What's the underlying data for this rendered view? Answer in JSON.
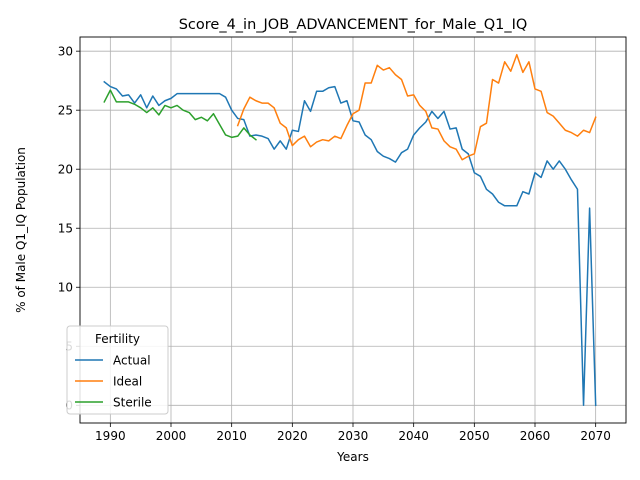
{
  "chart_data": {
    "type": "line",
    "title": "Score_4_in_JOB_ADVANCEMENT_for_Male_Q1_IQ",
    "xlabel": "Years",
    "ylabel": "% of Male Q1_IQ Population",
    "xlim": [
      1985,
      2075
    ],
    "ylim": [
      -1.5,
      31.2
    ],
    "xticks": [
      1990,
      2000,
      2010,
      2020,
      2030,
      2040,
      2050,
      2060,
      2070
    ],
    "yticks": [
      0,
      5,
      10,
      15,
      20,
      25,
      30
    ],
    "grid": true,
    "legend": {
      "title": "Fertility",
      "position": "lower-left"
    },
    "series": [
      {
        "name": "Actual",
        "color": "#1f77b4",
        "x": [
          1989,
          1990,
          1991,
          1992,
          1993,
          1994,
          1995,
          1996,
          1997,
          1998,
          1999,
          2000,
          2001,
          2002,
          2003,
          2004,
          2005,
          2006,
          2007,
          2008,
          2009,
          2010,
          2011,
          2012,
          2013,
          2014,
          2015,
          2016,
          2017,
          2018,
          2019,
          2020,
          2021,
          2022,
          2023,
          2024,
          2025,
          2026,
          2027,
          2028,
          2029,
          2030,
          2031,
          2032,
          2033,
          2034,
          2035,
          2036,
          2037,
          2038,
          2039,
          2040,
          2041,
          2042,
          2043,
          2044,
          2045,
          2046,
          2047,
          2048,
          2049,
          2050,
          2051,
          2052,
          2053,
          2054,
          2055,
          2056,
          2057,
          2058,
          2059,
          2060,
          2061,
          2062,
          2063,
          2064,
          2065,
          2066,
          2067,
          2068,
          2069,
          2070
        ],
        "values": [
          27.4,
          27.0,
          26.8,
          26.2,
          26.3,
          25.6,
          26.3,
          25.2,
          26.2,
          25.4,
          25.8,
          26.0,
          26.4,
          26.4,
          26.4,
          26.4,
          26.4,
          26.4,
          26.4,
          26.4,
          26.1,
          25.0,
          24.3,
          24.2,
          22.8,
          22.9,
          22.8,
          22.6,
          21.7,
          22.4,
          21.7,
          23.3,
          23.2,
          25.8,
          24.9,
          26.6,
          26.6,
          26.9,
          27.0,
          25.6,
          25.8,
          24.1,
          24.0,
          22.9,
          22.5,
          21.5,
          21.1,
          20.9,
          20.6,
          21.4,
          21.7,
          22.9,
          23.5,
          24.0,
          24.9,
          24.3,
          24.9,
          23.4,
          23.5,
          21.7,
          21.3,
          19.7,
          19.4,
          18.3,
          17.9,
          17.2,
          16.9,
          16.9,
          16.9,
          18.1,
          17.9,
          19.7,
          19.3,
          20.7,
          20.0,
          20.7,
          20.0,
          19.1,
          18.3,
          0.0,
          16.7,
          0.0
        ]
      },
      {
        "name": "Ideal",
        "color": "#ff7f0e",
        "x": [
          2011,
          2012,
          2013,
          2014,
          2015,
          2016,
          2017,
          2018,
          2019,
          2020,
          2021,
          2022,
          2023,
          2024,
          2025,
          2026,
          2027,
          2028,
          2029,
          2030,
          2031,
          2032,
          2033,
          2034,
          2035,
          2036,
          2037,
          2038,
          2039,
          2040,
          2041,
          2042,
          2043,
          2044,
          2045,
          2046,
          2047,
          2048,
          2049,
          2050,
          2051,
          2052,
          2053,
          2054,
          2055,
          2056,
          2057,
          2058,
          2059,
          2060,
          2061,
          2062,
          2063,
          2064,
          2065,
          2066,
          2067,
          2068,
          2069,
          2070
        ],
        "values": [
          23.7,
          25.1,
          26.1,
          25.8,
          25.6,
          25.6,
          25.2,
          23.9,
          23.5,
          22.0,
          22.5,
          22.8,
          21.9,
          22.3,
          22.5,
          22.4,
          22.8,
          22.6,
          23.7,
          24.7,
          25.0,
          27.3,
          27.3,
          28.8,
          28.4,
          28.6,
          28.0,
          27.6,
          26.2,
          26.3,
          25.4,
          24.9,
          23.5,
          23.4,
          22.4,
          21.9,
          21.7,
          20.8,
          21.1,
          21.3,
          23.6,
          23.9,
          27.6,
          27.3,
          29.1,
          28.3,
          29.7,
          28.2,
          29.1,
          26.8,
          26.6,
          24.8,
          24.5,
          23.9,
          23.3,
          23.1,
          22.8,
          23.3,
          23.1,
          24.4
        ]
      },
      {
        "name": "Sterile",
        "color": "#2ca02c",
        "x": [
          1989,
          1990,
          1991,
          1992,
          1993,
          1994,
          1995,
          1996,
          1997,
          1998,
          1999,
          2000,
          2001,
          2002,
          2003,
          2004,
          2005,
          2006,
          2007,
          2008,
          2009,
          2010,
          2011,
          2012,
          2013,
          2014
        ],
        "values": [
          25.7,
          26.7,
          25.7,
          25.7,
          25.7,
          25.5,
          25.2,
          24.8,
          25.2,
          24.6,
          25.4,
          25.2,
          25.4,
          25.0,
          24.8,
          24.2,
          24.4,
          24.1,
          24.7,
          23.8,
          22.9,
          22.7,
          22.8,
          23.5,
          22.9,
          22.5
        ]
      }
    ]
  }
}
